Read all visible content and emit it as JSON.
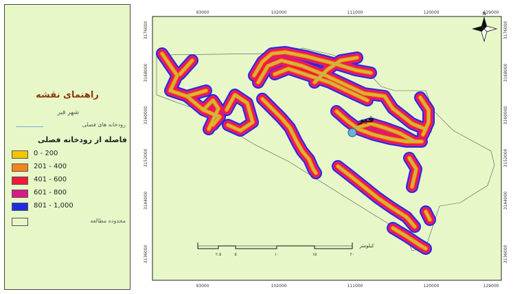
{
  "legend": {
    "title": "راهنمای نقشه",
    "city_label": "شهر قیر",
    "river_label": "رودخانه های فصلی",
    "distance_title": "فاصله از رودخانه فصلی",
    "classes": [
      {
        "label": "0 - 200",
        "color": "#f5c400"
      },
      {
        "label": "201 - 400",
        "color": "#f5841f"
      },
      {
        "label": "401 - 600",
        "color": "#ee1c3a"
      },
      {
        "label": "601 - 800",
        "color": "#d81b86"
      },
      {
        "label": "801 - 1,000",
        "color": "#1f2be0"
      }
    ],
    "boundary_label": "محدوده مطالعه"
  },
  "map": {
    "background_color": "#e8f7c8",
    "city_name": "قیر",
    "x_ticks_top": [
      "93000",
      "102000",
      "111000",
      "120000",
      "129000"
    ],
    "x_ticks_bottom": [
      "93000",
      "102000",
      "111000",
      "120000",
      "129000"
    ],
    "y_ticks": [
      "3176000",
      "3168000",
      "3160000",
      "3152000",
      "3144000",
      "3136000"
    ],
    "scale_bar": {
      "unit_label": "کیلومتر",
      "labels": [
        "۰",
        "۲.۵",
        "۵",
        "۱۰",
        "۱۵",
        "۲۰"
      ]
    },
    "north_arrow": "N"
  }
}
